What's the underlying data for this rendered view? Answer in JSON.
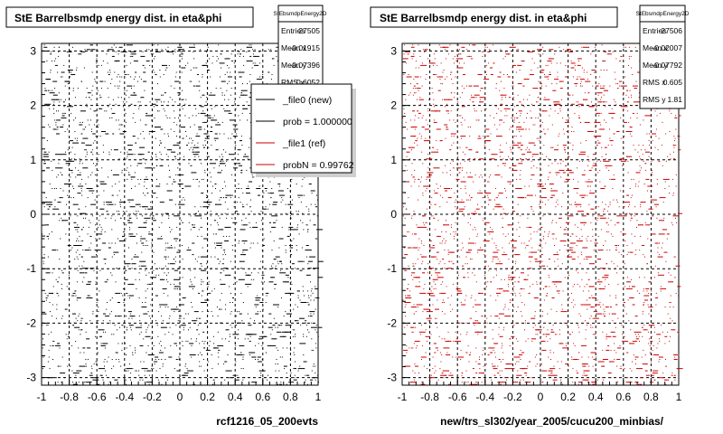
{
  "canvas": {
    "background": "#ffffff"
  },
  "footer_label": "",
  "chart_data": [
    {
      "type": "scatter",
      "title": "StE Barrelbsmdp energy dist. in eta&phi",
      "xlabel": "rcf1216_05_200evts",
      "ylabel": "",
      "xlim": [
        -1,
        1
      ],
      "ylim": [
        -3.14,
        3.14
      ],
      "x_ticks": [
        "-1",
        "-0.8",
        "-0.6",
        "-0.4",
        "-0.2",
        "0",
        "0.2",
        "0.4",
        "0.6",
        "0.8",
        "1"
      ],
      "y_ticks": [
        "-3",
        "-2",
        "-1",
        "0",
        "1",
        "2",
        "3"
      ],
      "grid": true,
      "series": [
        {
          "name": "_file0 (new)",
          "color": "#000000",
          "seed": 7,
          "points": 2600
        }
      ],
      "stats": {
        "title": "StEbsmdpEnergy2D",
        "rows": [
          {
            "label": "Entries",
            "value": "27505"
          },
          {
            "label": "Mean x",
            "value": "-0.01915"
          },
          {
            "label": "Mean y",
            "value": "-0.07396"
          },
          {
            "label": "RMS x",
            "value": "0.6052"
          }
        ]
      },
      "legend": {
        "placement": "top-right",
        "entries": [
          {
            "label": "_file0 (new)",
            "color": "#000000"
          },
          {
            "label": "prob = 1.000000",
            "color": "#000000"
          },
          {
            "label": "_file1 (ref)",
            "color": "#cc0000"
          },
          {
            "label": "probN = 0.99762",
            "color": "#cc0000"
          }
        ]
      }
    },
    {
      "type": "scatter",
      "title": "StE Barrelbsmdp energy dist. in eta&phi",
      "xlabel": "new/trs_sl302/year_2005/cucu200_minbias/",
      "ylabel": "",
      "xlim": [
        -1,
        1
      ],
      "ylim": [
        -3.14,
        3.14
      ],
      "x_ticks": [
        "-1",
        "-0.8",
        "-0.6",
        "-0.4",
        "-0.2",
        "0",
        "0.2",
        "0.4",
        "0.6",
        "0.8",
        "1"
      ],
      "y_ticks": [
        "-3",
        "-2",
        "-1",
        "0",
        "1",
        "2",
        "3"
      ],
      "grid": true,
      "series": [
        {
          "name": "_file1 (ref)",
          "color": "#cc0000",
          "seed": 19,
          "points": 2600
        }
      ],
      "stats": {
        "title": "StEbsmdpEnergy2D",
        "rows": [
          {
            "label": "Entries",
            "value": "27506"
          },
          {
            "label": "Mean x",
            "value": "-0.02007"
          },
          {
            "label": "Mean y",
            "value": "-0.07792"
          },
          {
            "label": "RMS x",
            "value": "0.605"
          },
          {
            "label": "RMS y",
            "value": "1.81"
          }
        ]
      }
    }
  ]
}
